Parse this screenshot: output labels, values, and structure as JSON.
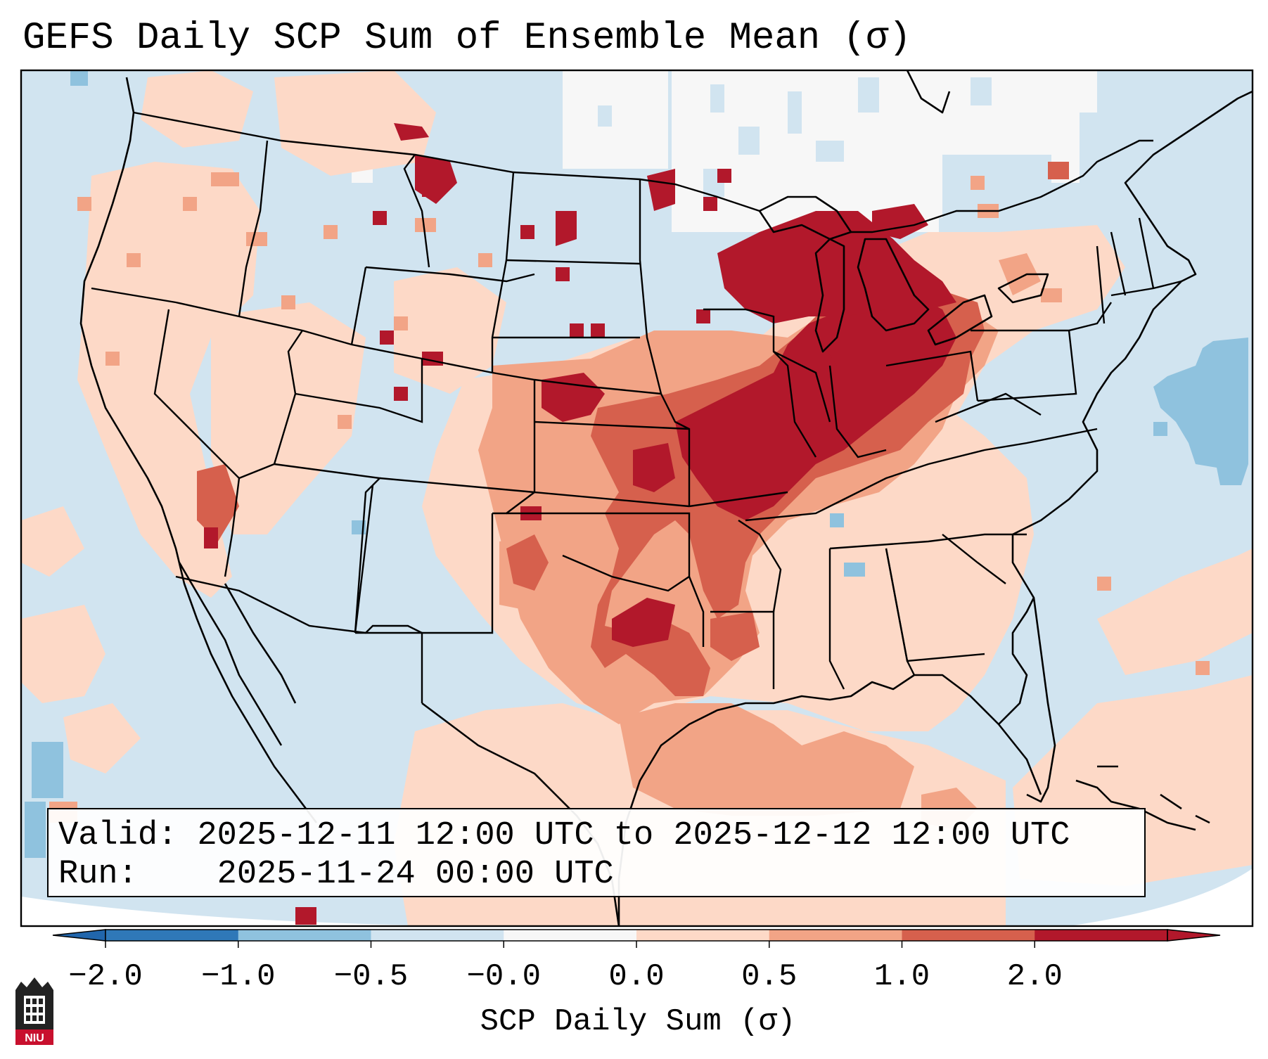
{
  "title": "GEFS Daily SCP Sum of Ensemble Mean (σ)",
  "info": {
    "valid_label": "Valid:",
    "valid_text": "2025-12-11 12:00 UTC to 2025-12-12 12:00 UTC",
    "run_label": "Run:",
    "run_text": "2025-11-24 00:00 UTC"
  },
  "colorbar": {
    "label": "SCP Daily Sum (σ)",
    "ticks": [
      "−2.0",
      "−1.0",
      "−0.5",
      "−0.0",
      "0.0",
      "0.5",
      "1.0",
      "2.0"
    ],
    "colors": [
      "#2f78b8",
      "#8fc2de",
      "#d1e4f0",
      "#f7f7f7",
      "#fdd9c7",
      "#f2a486",
      "#d6604d",
      "#b2182b"
    ],
    "under_color": "#2166ac",
    "over_color": "#b2182b"
  },
  "logo": {
    "text": "NIU"
  },
  "map": {
    "type": "gridded field map",
    "region": "CONUS",
    "background_color": "#d1e4f0",
    "regions": [
      {
        "name": "midwest-max",
        "level": 2.0,
        "color": "#b2182b"
      },
      {
        "name": "ohio-valley",
        "level": 1.0,
        "color": "#d6604d"
      },
      {
        "name": "southern-plains",
        "level": 0.5,
        "color": "#f2a486"
      },
      {
        "name": "gulf-coast",
        "level": 0.0,
        "color": "#fdd9c7"
      },
      {
        "name": "canada-north",
        "level": -0.0,
        "color": "#f7f7f7"
      },
      {
        "name": "atlantic",
        "level": -1.0,
        "color": "#8fc2de"
      }
    ]
  }
}
